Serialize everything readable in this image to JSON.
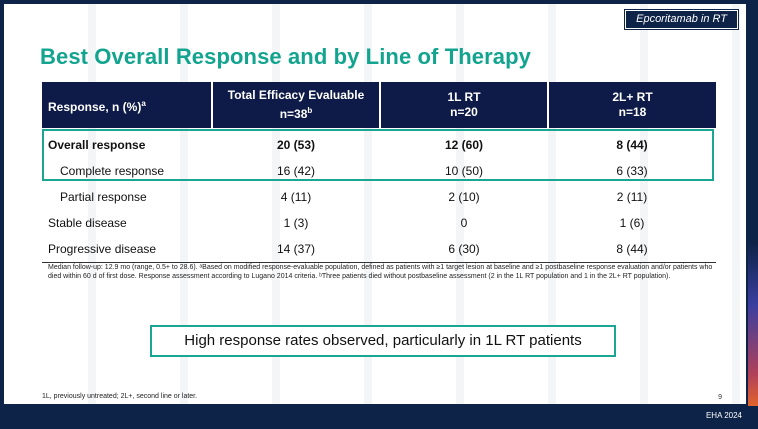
{
  "header": {
    "topic_tag": "Epcoritamab in RT",
    "title": "Best Overall Response and by Line of Therapy"
  },
  "table": {
    "columns": [
      {
        "line1": "Response, n (%)",
        "sup": "a",
        "line2": ""
      },
      {
        "line1": "Total Efficacy Evaluable",
        "line2": "n=38",
        "sup2": "b"
      },
      {
        "line1": "1L RT",
        "line2": "n=20"
      },
      {
        "line1": "2L+ RT",
        "line2": "n=18"
      }
    ],
    "rows": [
      {
        "label": "Overall response",
        "values": [
          "20 (53)",
          "12 (60)",
          "8 (44)"
        ]
      },
      {
        "label": "Complete response",
        "values": [
          "16 (42)",
          "10 (50)",
          "6 (33)"
        ]
      },
      {
        "label": "Partial response",
        "values": [
          "4 (11)",
          "2 (10)",
          "2 (11)"
        ]
      },
      {
        "label": "Stable disease",
        "values": [
          "1 (3)",
          "0",
          "1 (6)"
        ]
      },
      {
        "label": "Progressive disease",
        "values": [
          "14 (37)",
          "6 (30)",
          "8 (44)"
        ]
      }
    ]
  },
  "footnote": "Median follow-up: 12.9 mo (range, 0.5+ to 28.6). ᵃBased on modified response-evaluable population, defined as patients with ≥1 target lesion at baseline and ≥1 postbaseline response evaluation and/or patients who died within 60 d of first dose. Response assessment according to Lugano 2014 criteria. ᵇThree patients died without postbaseline assessment (2 in the 1L RT population and 1 in the 2L+ RT population).",
  "callout": "High response rates observed, particularly in 1L RT patients",
  "abbreviations": "1L, previously untreated; 2L+, second line or later.",
  "page_number": "9",
  "conference": "EHA 2024",
  "colors": {
    "title_teal": "#12a48f",
    "header_navy": "#0e1a47",
    "highlight_border": "#1aa693",
    "background_navy": "#0e2348"
  }
}
